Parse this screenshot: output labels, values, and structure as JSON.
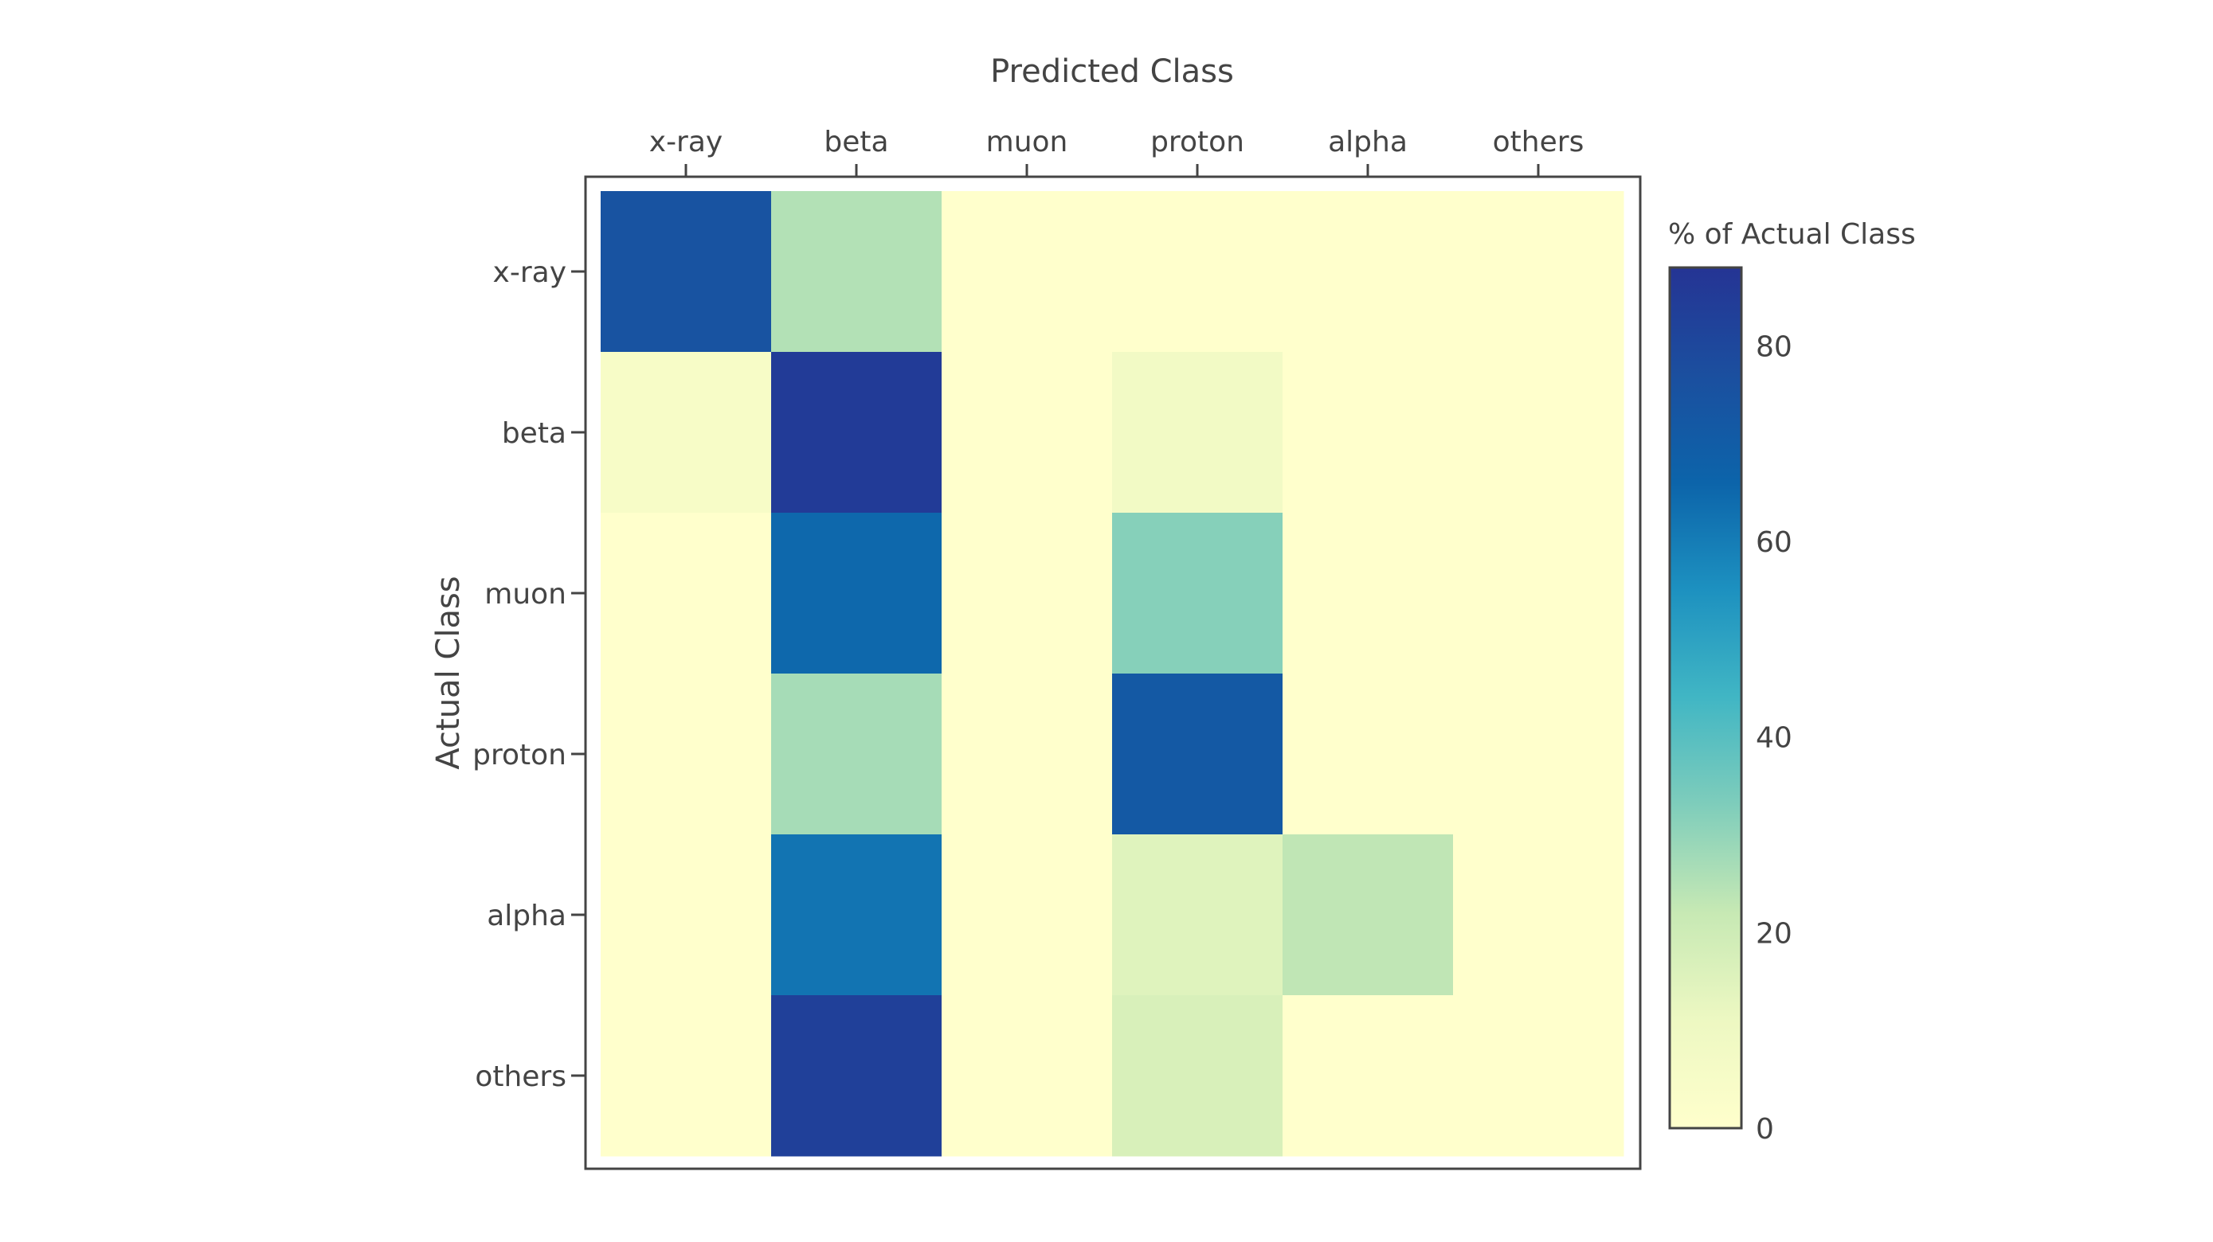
{
  "chart_data": {
    "type": "heatmap",
    "x_title": "Predicted Class",
    "y_title": "Actual Class",
    "x_categories": [
      "x-ray",
      "beta",
      "muon",
      "proton",
      "alpha",
      "others"
    ],
    "y_categories": [
      "x-ray",
      "beta",
      "muon",
      "proton",
      "alpha",
      "others"
    ],
    "values": [
      [
        75,
        25,
        0,
        0,
        0,
        0
      ],
      [
        5,
        85,
        0,
        8,
        0,
        0
      ],
      [
        0,
        65,
        0,
        32,
        0,
        0
      ],
      [
        0,
        27,
        0,
        72,
        0,
        0
      ],
      [
        0,
        62,
        0,
        15,
        23,
        0
      ],
      [
        0,
        83,
        0,
        17,
        0,
        0
      ]
    ],
    "colorbar": {
      "title": "% of Actual Class",
      "range": [
        0,
        88
      ],
      "ticks": [
        0,
        20,
        40,
        60,
        80
      ]
    },
    "colorscale": [
      [
        0.0,
        "#ffffcc"
      ],
      [
        0.125,
        "#edf8c2"
      ],
      [
        0.25,
        "#c7e9b4"
      ],
      [
        0.375,
        "#7fcdbb"
      ],
      [
        0.5,
        "#41b6c4"
      ],
      [
        0.625,
        "#1d91c0"
      ],
      [
        0.75,
        "#0c64aa"
      ],
      [
        0.875,
        "#1b4f9f"
      ],
      [
        1.0,
        "#253494"
      ]
    ]
  }
}
